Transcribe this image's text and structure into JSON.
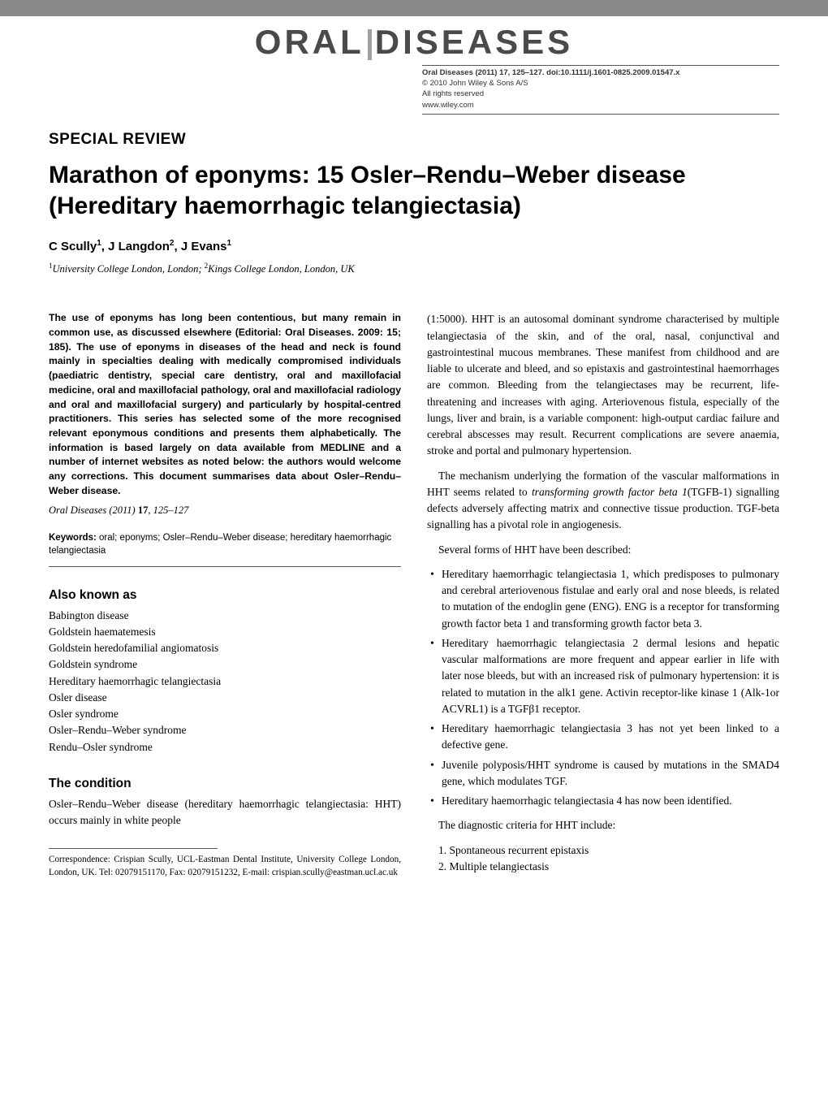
{
  "journal": {
    "word1": "ORAL",
    "word2": "DISEASES"
  },
  "citation": {
    "line1": "Oral Diseases (2011) 17, 125–127. doi:10.1111/j.1601-0825.2009.01547.x",
    "line2": "© 2010 John Wiley & Sons A/S",
    "line3": "All rights reserved",
    "url": "www.wiley.com"
  },
  "section_label": "SPECIAL REVIEW",
  "title": "Marathon of eponyms: 15 Osler–Rendu–Weber disease (Hereditary haemorrhagic telangiectasia)",
  "authors_html": "C Scully<sup>1</sup>, J Langdon<sup>2</sup>, J Evans<sup>1</sup>",
  "affiliations_html": "<sup>1</sup>University College London, London; <sup>2</sup>Kings College London, London, UK",
  "abstract": "The use of eponyms has long been contentious, but many remain in common use, as discussed elsewhere (Editorial: Oral Diseases. 2009: 15; 185). The use of eponyms in diseases of the head and neck is found mainly in specialties dealing with medically compromised individuals (paediatric dentistry, special care dentistry, oral and maxillofacial medicine, oral and maxillofacial pathology, oral and maxillofacial radiology and oral and maxillofacial surgery) and particularly by hospital-centred practitioners. This series has selected some of the more recognised relevant eponymous conditions and presents them alphabetically. The information is based largely on data available from MEDLINE and a number of internet websites as noted below: the authors would welcome any corrections. This document summarises data about Osler–Rendu–Weber disease.",
  "cite_line": {
    "journal": "Oral Diseases",
    "year_vol": "(2011) ",
    "vol": "17",
    "pages": ", 125–127"
  },
  "keywords_label": "Keywords:",
  "keywords": " oral; eponyms; Osler–Rendu–Weber disease; hereditary haemorrhagic telangiectasia",
  "aka_heading": "Also known as",
  "aka": [
    "Babington disease",
    "Goldstein haematemesis",
    "Goldstein heredofamilial angiomatosis",
    "Goldstein syndrome",
    "Hereditary haemorrhagic telangiectasia",
    "Osler disease",
    "Osler syndrome",
    "Osler–Rendu–Weber syndrome",
    "Rendu–Osler syndrome"
  ],
  "condition_heading": "The condition",
  "left_condition_p": "Osler–Rendu–Weber disease (hereditary haemorrhagic telangiectasia: HHT) occurs mainly in white people",
  "correspondence": "Correspondence: Crispian Scully, UCL-Eastman Dental Institute, University College London, London, UK. Tel: 02079151170, Fax: 02079151232, E-mail: crispian.scully@eastman.ucl.ac.uk",
  "col2_p1": "(1:5000). HHT is an autosomal dominant syndrome characterised by multiple telangiectasia of the skin, and of the oral, nasal, conjunctival and gastrointestinal mucous membranes. These manifest from childhood and are liable to ulcerate and bleed, and so epistaxis and gastrointestinal haemorrhages are common. Bleeding from the telangiectases may be recurrent, life-threatening and increases with aging. Arteriovenous fistula, especially of the lungs, liver and brain, is a variable component: high-output cardiac failure and cerebral abscesses may result. Recurrent complications are severe anaemia, stroke and portal and pulmonary hypertension.",
  "col2_p2_pre": "The mechanism underlying the formation of the vascular malformations in HHT seems related to ",
  "col2_p2_ital": "transforming growth factor beta 1",
  "col2_p2_post": "(TGFB-1) signalling defects adversely affecting matrix and connective tissue production. TGF-beta signalling has a pivotal role in angiogenesis.",
  "col2_p3": "Several forms of HHT have been described:",
  "hht_forms": [
    "Hereditary haemorrhagic telangiectasia 1, which predisposes to pulmonary and cerebral arteriovenous fistulae and early oral and nose bleeds, is related to mutation of the endoglin gene (ENG). ENG is a receptor for transforming growth factor beta 1 and transforming growth factor beta 3.",
    "Hereditary haemorrhagic telangiectasia 2 dermal lesions and hepatic vascular malformations are more frequent and appear earlier in life with later nose bleeds, but with an increased risk of pulmonary hypertension: it is related to mutation in the alk1 gene. Activin receptor-like kinase 1 (Alk-1or ACVRL1) is a TGFβ1 receptor.",
    "Hereditary haemorrhagic telangiectasia 3 has not yet been linked to a defective gene.",
    "Juvenile polyposis/HHT syndrome is caused by mutations in the SMAD4 gene, which modulates TGF.",
    "Hereditary haemorrhagic telangiectasia 4 has now been identified."
  ],
  "diag_intro": "The diagnostic criteria for HHT include:",
  "diag_criteria": [
    "1. Spontaneous recurrent epistaxis",
    "2. Multiple telangiectasis"
  ],
  "colors": {
    "topbar": "#8a8a8a",
    "text": "#000000",
    "rule": "#555555",
    "logo": "#4a4a4a"
  }
}
